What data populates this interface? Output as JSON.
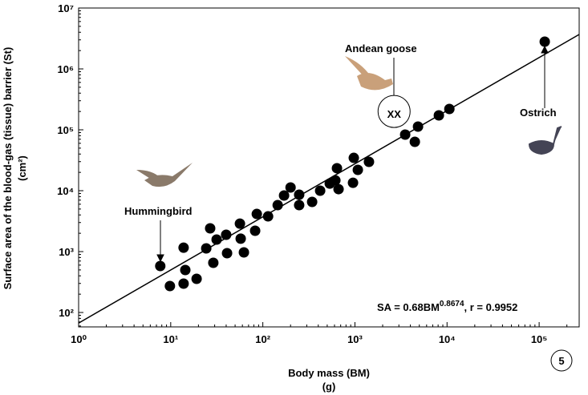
{
  "chart_data": {
    "type": "scatter",
    "x_label": "Body mass (BM)",
    "x_unit": "(g)",
    "y_label": "Surface area of the blood-gas (tissue) barrier (St)",
    "y_unit": "(cm²)",
    "log_x": true,
    "log_y": true,
    "xlim": [
      1,
      272000
    ],
    "ylim": [
      58,
      10000000
    ],
    "xticks": [
      {
        "value": 1,
        "label": "10⁰"
      },
      {
        "value": 10,
        "label": "10¹"
      },
      {
        "value": 100,
        "label": "10²"
      },
      {
        "value": 1000,
        "label": "10³"
      },
      {
        "value": 10000,
        "label": "10⁴"
      },
      {
        "value": 100000,
        "label": "10⁵"
      }
    ],
    "yticks": [
      {
        "value": 100,
        "label": "10²"
      },
      {
        "value": 1000,
        "label": "10³"
      },
      {
        "value": 10000,
        "label": "10⁴"
      },
      {
        "value": 100000,
        "label": "10⁵"
      },
      {
        "value": 1000000,
        "label": "10⁶"
      },
      {
        "value": 10000000,
        "label": "10⁷"
      }
    ],
    "color": "#000000",
    "x": [
      7.7,
      9.8,
      13.8,
      13.8,
      14.4,
      19.1,
      24.3,
      26.8,
      29,
      31.5,
      40,
      40.9,
      56.4,
      57.5,
      62.3,
      82.5,
      86,
      114,
      145,
      170,
      200,
      248,
      248,
      343,
      419,
      533,
      613,
      638,
      664,
      953,
      972,
      1075,
      1420,
      3510,
      4470,
      4840,
      8150,
      10600,
      115000
    ],
    "values": [
      580,
      272,
      298,
      1160,
      498,
      357,
      1130,
      2410,
      655,
      1575,
      1890,
      941,
      2880,
      1630,
      970,
      2200,
      4150,
      3790,
      5800,
      8340,
      11300,
      5800,
      8600,
      6550,
      10000,
      13100,
      14800,
      23400,
      10600,
      13500,
      34600,
      22000,
      29800,
      83400,
      63500,
      113000,
      172600,
      220000,
      2800000
    ],
    "fit_line": {
      "x": [
        1,
        272000
      ],
      "y": [
        67,
        3680000
      ]
    },
    "goose_marker": {
      "x": 2660,
      "y": 200000,
      "label": "XX"
    },
    "annotations": {
      "hummingbird": "Hummingbird",
      "goose": "Andean goose",
      "ostrich": "Ostrich"
    },
    "equation": {
      "base": "SA = 0.68BM",
      "exponent": "0.8674",
      "rest": ", r = 0.9952"
    },
    "panel_number": "5"
  }
}
